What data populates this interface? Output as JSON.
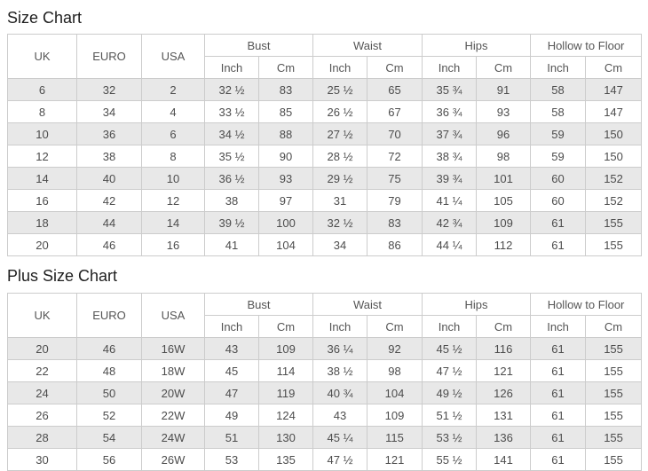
{
  "colors": {
    "stripe": "#e8e8e8",
    "border": "#cccccc",
    "text": "#4d4d4d",
    "title": "#1e1e1e",
    "background": "#ffffff"
  },
  "tables": {
    "size_chart": {
      "title": "Size Chart",
      "columns": [
        "UK",
        "EURO",
        "USA"
      ],
      "groups": [
        "Bust",
        "Waist",
        "Hips",
        "Hollow to Floor"
      ],
      "units": [
        "Inch",
        "Cm"
      ],
      "rows": [
        [
          "6",
          "32",
          "2",
          "32 ½",
          "83",
          "25 ½",
          "65",
          "35 ¾",
          "91",
          "58",
          "147"
        ],
        [
          "8",
          "34",
          "4",
          "33 ½",
          "85",
          "26 ½",
          "67",
          "36 ¾",
          "93",
          "58",
          "147"
        ],
        [
          "10",
          "36",
          "6",
          "34 ½",
          "88",
          "27 ½",
          "70",
          "37 ¾",
          "96",
          "59",
          "150"
        ],
        [
          "12",
          "38",
          "8",
          "35 ½",
          "90",
          "28 ½",
          "72",
          "38 ¾",
          "98",
          "59",
          "150"
        ],
        [
          "14",
          "40",
          "10",
          "36 ½",
          "93",
          "29 ½",
          "75",
          "39 ¾",
          "101",
          "60",
          "152"
        ],
        [
          "16",
          "42",
          "12",
          "38",
          "97",
          "31",
          "79",
          "41 ¼",
          "105",
          "60",
          "152"
        ],
        [
          "18",
          "44",
          "14",
          "39 ½",
          "100",
          "32 ½",
          "83",
          "42 ¾",
          "109",
          "61",
          "155"
        ],
        [
          "20",
          "46",
          "16",
          "41",
          "104",
          "34",
          "86",
          "44 ¼",
          "112",
          "61",
          "155"
        ]
      ]
    },
    "plus_size_chart": {
      "title": "Plus Size Chart",
      "columns": [
        "UK",
        "EURO",
        "USA"
      ],
      "groups": [
        "Bust",
        "Waist",
        "Hips",
        "Hollow to Floor"
      ],
      "units": [
        "Inch",
        "Cm"
      ],
      "rows": [
        [
          "20",
          "46",
          "16W",
          "43",
          "109",
          "36 ¼",
          "92",
          "45 ½",
          "116",
          "61",
          "155"
        ],
        [
          "22",
          "48",
          "18W",
          "45",
          "114",
          "38 ½",
          "98",
          "47 ½",
          "121",
          "61",
          "155"
        ],
        [
          "24",
          "50",
          "20W",
          "47",
          "119",
          "40 ¾",
          "104",
          "49 ½",
          "126",
          "61",
          "155"
        ],
        [
          "26",
          "52",
          "22W",
          "49",
          "124",
          "43",
          "109",
          "51 ½",
          "131",
          "61",
          "155"
        ],
        [
          "28",
          "54",
          "24W",
          "51",
          "130",
          "45 ¼",
          "115",
          "53 ½",
          "136",
          "61",
          "155"
        ],
        [
          "30",
          "56",
          "26W",
          "53",
          "135",
          "47 ½",
          "121",
          "55 ½",
          "141",
          "61",
          "155"
        ]
      ]
    }
  }
}
